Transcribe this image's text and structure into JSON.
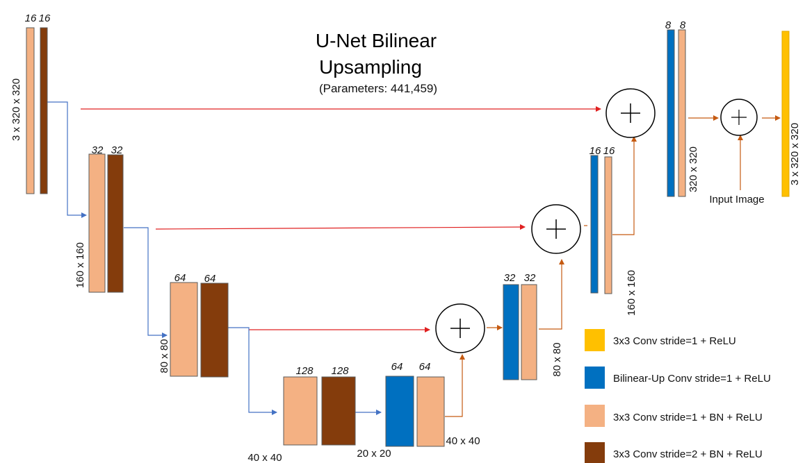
{
  "title": {
    "line1": "U-Net Bilinear",
    "line2": "Upsampling",
    "params": "(Parameters: 441,459)"
  },
  "colors": {
    "conv_bn_relu": "#F4B183",
    "conv_stride2": "#843C0C",
    "bilinear_up": "#0070C0",
    "final_conv": "#FFC000",
    "skip_arrow": "#E02020",
    "down_arrow": "#4472C4",
    "up_arrow": "#C55A11"
  },
  "encoder": {
    "level1": {
      "channels_a": "16",
      "channels_b": "16",
      "size": "3 x 320 x 320"
    },
    "level2": {
      "channels_a": "32",
      "channels_b": "32",
      "size": "160 x 160"
    },
    "level3": {
      "channels_a": "64",
      "channels_b": "64",
      "size": "80 x 80"
    },
    "level4": {
      "channels_a": "128",
      "channels_b": "128",
      "size": "40 x 40"
    }
  },
  "bottleneck": {
    "size": "20 x 20"
  },
  "decoder": {
    "level4": {
      "channels_a": "64",
      "channels_b": "64",
      "size": "40 x 40"
    },
    "level3": {
      "channels_a": "32",
      "channels_b": "32",
      "size": "80 x 80"
    },
    "level2": {
      "channels_a": "16",
      "channels_b": "16",
      "size": "160 x 160"
    },
    "level1": {
      "channels_a": "8",
      "channels_b": "8",
      "size": "320 x 320"
    }
  },
  "input_image_label": "Input Image",
  "output_size": "3 x 320 x 320",
  "add_symbol": "+",
  "legend": [
    {
      "label": "3x3 Conv stride=1 + ReLU",
      "color_key": "final_conv"
    },
    {
      "label": "Bilinear-Up Conv stride=1 + ReLU",
      "color_key": "bilinear_up"
    },
    {
      "label": "3x3 Conv stride=1 + BN + ReLU",
      "color_key": "conv_bn_relu"
    },
    {
      "label": "3x3 Conv stride=2 + BN + ReLU",
      "color_key": "conv_stride2"
    }
  ]
}
